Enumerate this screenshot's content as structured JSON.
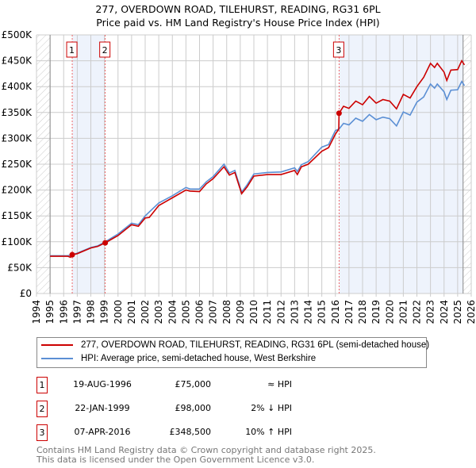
{
  "title": "277, OVERDOWN ROAD, TILEHURST, READING, RG31 6PL",
  "subtitle": "Price paid vs. HM Land Registry's House Price Index (HPI)",
  "chart_data": {
    "type": "line",
    "xlim": [
      1994,
      2026
    ],
    "ylim": [
      0,
      500000
    ],
    "x_ticks": [
      "1994",
      "1995",
      "1996",
      "1997",
      "1998",
      "1999",
      "2000",
      "2001",
      "2002",
      "2003",
      "2004",
      "2005",
      "2006",
      "2007",
      "2008",
      "2009",
      "2010",
      "2011",
      "2012",
      "2013",
      "2014",
      "2015",
      "2016",
      "2017",
      "2018",
      "2019",
      "2020",
      "2021",
      "2022",
      "2023",
      "2024",
      "2025",
      "2026"
    ],
    "y_ticks": [
      {
        "v": 0,
        "label": "£0"
      },
      {
        "v": 50000,
        "label": "£50K"
      },
      {
        "v": 100000,
        "label": "£100K"
      },
      {
        "v": 150000,
        "label": "£150K"
      },
      {
        "v": 200000,
        "label": "£200K"
      },
      {
        "v": 250000,
        "label": "£250K"
      },
      {
        "v": 300000,
        "label": "£300K"
      },
      {
        "v": 350000,
        "label": "£350K"
      },
      {
        "v": 400000,
        "label": "£400K"
      },
      {
        "v": 450000,
        "label": "£450K"
      },
      {
        "v": 500000,
        "label": "£500K"
      }
    ],
    "grid": true,
    "data_range": [
      1995,
      2025.4
    ],
    "shaded_ranges": [
      [
        1996.63,
        1999.06
      ],
      [
        2016.27,
        2025.4
      ]
    ],
    "series": [
      {
        "name": "277, OVERDOWN ROAD, TILEHURST, READING, RG31 6PL (semi-detached house)",
        "color": "#cc0000",
        "points": [
          [
            1995,
            72000
          ],
          [
            1996.3,
            72000
          ],
          [
            1996.5,
            70000
          ],
          [
            1996.63,
            75000
          ],
          [
            1997,
            77000
          ],
          [
            1998,
            88000
          ],
          [
            1998.5,
            91000
          ],
          [
            1999.06,
            98000
          ],
          [
            2000,
            112000
          ],
          [
            2001,
            133000
          ],
          [
            2001.5,
            130000
          ],
          [
            2002,
            146000
          ],
          [
            2002.3,
            147000
          ],
          [
            2003,
            170000
          ],
          [
            2004,
            185000
          ],
          [
            2005,
            200000
          ],
          [
            2005.3,
            198000
          ],
          [
            2006,
            197000
          ],
          [
            2006.5,
            212000
          ],
          [
            2007,
            222000
          ],
          [
            2007.8,
            245000
          ],
          [
            2008.2,
            229000
          ],
          [
            2008.6,
            234000
          ],
          [
            2009.1,
            193000
          ],
          [
            2009.5,
            206000
          ],
          [
            2010,
            227000
          ],
          [
            2011,
            230000
          ],
          [
            2012,
            230000
          ],
          [
            2013,
            238000
          ],
          [
            2013.2,
            230000
          ],
          [
            2013.5,
            245000
          ],
          [
            2014,
            250000
          ],
          [
            2015,
            275000
          ],
          [
            2015.5,
            282000
          ],
          [
            2016,
            308000
          ],
          [
            2016.25,
            318000
          ],
          [
            2016.27,
            348500
          ],
          [
            2016.6,
            362000
          ],
          [
            2017,
            358000
          ],
          [
            2017.5,
            372000
          ],
          [
            2018,
            365000
          ],
          [
            2018.5,
            381000
          ],
          [
            2019,
            368000
          ],
          [
            2019.5,
            375000
          ],
          [
            2020,
            372000
          ],
          [
            2020.5,
            357000
          ],
          [
            2021,
            385000
          ],
          [
            2021.5,
            378000
          ],
          [
            2022,
            400000
          ],
          [
            2022.5,
            418000
          ],
          [
            2023,
            445000
          ],
          [
            2023.3,
            437000
          ],
          [
            2023.5,
            445000
          ],
          [
            2024,
            428000
          ],
          [
            2024.2,
            412000
          ],
          [
            2024.5,
            432000
          ],
          [
            2025,
            433000
          ],
          [
            2025.3,
            450000
          ],
          [
            2025.5,
            442000
          ]
        ]
      },
      {
        "name": "HPI: Average price, semi-detached house, West Berkshire",
        "color": "#5b8fd4",
        "points": [
          [
            1995,
            73000
          ],
          [
            1996.3,
            73000
          ],
          [
            1996.63,
            75000
          ],
          [
            1997,
            78000
          ],
          [
            1998,
            89000
          ],
          [
            1998.5,
            92000
          ],
          [
            1999.06,
            100000
          ],
          [
            2000,
            115000
          ],
          [
            2001,
            136000
          ],
          [
            2001.5,
            133000
          ],
          [
            2002,
            150000
          ],
          [
            2003,
            175000
          ],
          [
            2004,
            189000
          ],
          [
            2005,
            205000
          ],
          [
            2005.3,
            202000
          ],
          [
            2006,
            202000
          ],
          [
            2006.5,
            216000
          ],
          [
            2007,
            226000
          ],
          [
            2007.8,
            250000
          ],
          [
            2008.2,
            233000
          ],
          [
            2008.6,
            238000
          ],
          [
            2009.1,
            196000
          ],
          [
            2009.5,
            210000
          ],
          [
            2010,
            231000
          ],
          [
            2011,
            234000
          ],
          [
            2012,
            235000
          ],
          [
            2013,
            243000
          ],
          [
            2013.2,
            236000
          ],
          [
            2013.5,
            249000
          ],
          [
            2014,
            255000
          ],
          [
            2015,
            283000
          ],
          [
            2015.5,
            288000
          ],
          [
            2016,
            315000
          ],
          [
            2016.27,
            318000
          ],
          [
            2016.6,
            329000
          ],
          [
            2017,
            326000
          ],
          [
            2017.5,
            339000
          ],
          [
            2018,
            333000
          ],
          [
            2018.5,
            346000
          ],
          [
            2019,
            336000
          ],
          [
            2019.5,
            341000
          ],
          [
            2020,
            338000
          ],
          [
            2020.5,
            324000
          ],
          [
            2021,
            351000
          ],
          [
            2021.5,
            345000
          ],
          [
            2022,
            370000
          ],
          [
            2022.5,
            380000
          ],
          [
            2023,
            405000
          ],
          [
            2023.3,
            397000
          ],
          [
            2023.5,
            405000
          ],
          [
            2024,
            390000
          ],
          [
            2024.2,
            375000
          ],
          [
            2024.5,
            393000
          ],
          [
            2025,
            394000
          ],
          [
            2025.3,
            410000
          ],
          [
            2025.5,
            402000
          ]
        ]
      }
    ],
    "markers": [
      {
        "label": "1",
        "x": 1996.63,
        "y": 75000
      },
      {
        "label": "2",
        "x": 1999.06,
        "y": 98000
      },
      {
        "label": "3",
        "x": 2016.27,
        "y": 348500
      }
    ],
    "legend_placement": "bottom"
  },
  "legend": {
    "property": "277, OVERDOWN ROAD, TILEHURST, READING, RG31 6PL (semi-detached house)",
    "hpi": "HPI: Average price, semi-detached house, West Berkshire"
  },
  "transactions": [
    {
      "num": "1",
      "date": "19-AUG-1996",
      "price": "£75,000",
      "rel": "≈ HPI"
    },
    {
      "num": "2",
      "date": "22-JAN-1999",
      "price": "£98,000",
      "rel": "2% ↓ HPI"
    },
    {
      "num": "3",
      "date": "07-APR-2016",
      "price": "£348,500",
      "rel": "10% ↑ HPI"
    }
  ],
  "footer": {
    "line1": "Contains HM Land Registry data © Crown copyright and database right 2025.",
    "line2": "This data is licensed under the Open Government Licence v3.0."
  }
}
